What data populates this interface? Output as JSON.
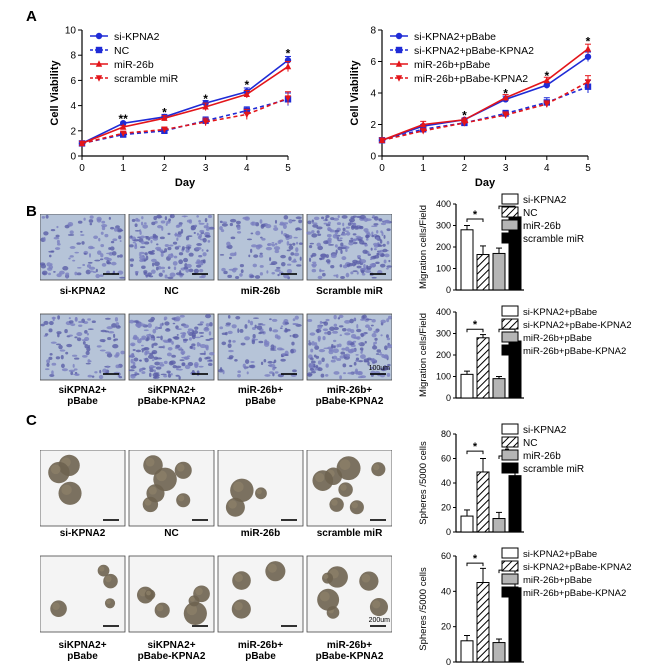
{
  "panels": {
    "a": "A",
    "b": "B",
    "c": "C"
  },
  "colors": {
    "blue": "#1f2bd6",
    "red": "#e3151a",
    "black": "#000000",
    "grey": "#b5b5b5"
  },
  "chart_data": [
    {
      "type": "line",
      "id": "A-left",
      "xlabel": "Day",
      "ylabel": "Cell Viability",
      "xlim": [
        0,
        5
      ],
      "ylim": [
        0,
        10
      ],
      "xticks": [
        "0",
        "1",
        "2",
        "3",
        "4",
        "5"
      ],
      "yticks": [
        "0",
        "2",
        "4",
        "6",
        "8",
        "10"
      ],
      "x": [
        0,
        1,
        2,
        3,
        4,
        5
      ],
      "series": [
        {
          "name": "si-KPNA2",
          "color": "#1f2bd6",
          "dash": false,
          "marker": "circle",
          "values": [
            1,
            2.6,
            3.1,
            4.2,
            5.1,
            7.6
          ],
          "err": [
            0,
            0.1,
            0.2,
            0.2,
            0.3,
            0.3
          ]
        },
        {
          "name": "NC",
          "color": "#1f2bd6",
          "dash": true,
          "marker": "square",
          "values": [
            1,
            1.7,
            2.0,
            2.8,
            3.6,
            4.5
          ],
          "err": [
            0,
            0.1,
            0.2,
            0.3,
            0.3,
            0.5
          ]
        },
        {
          "name": "miR-26b",
          "color": "#e3151a",
          "dash": false,
          "marker": "triangle-up",
          "values": [
            1,
            2.3,
            3.0,
            3.9,
            4.9,
            7.1
          ],
          "err": [
            0,
            0.1,
            0.2,
            0.3,
            0.3,
            0.4
          ]
        },
        {
          "name": "scramble miR",
          "color": "#e3151a",
          "dash": true,
          "marker": "triangle-down",
          "values": [
            1,
            1.8,
            2.1,
            2.7,
            3.3,
            4.6
          ],
          "err": [
            0,
            0.1,
            0.2,
            0.3,
            0.4,
            0.5
          ]
        }
      ],
      "annotations": [
        {
          "x": 1,
          "text": "**",
          "y": 3.1
        },
        {
          "x": 2,
          "text": "*",
          "y": 3.6
        },
        {
          "x": 3,
          "text": "*",
          "y": 4.7
        },
        {
          "x": 4,
          "text": "*",
          "y": 5.8
        },
        {
          "x": 5,
          "text": "*",
          "y": 8.3
        }
      ]
    },
    {
      "type": "line",
      "id": "A-right",
      "xlabel": "Day",
      "ylabel": "Cell Viability",
      "xlim": [
        0,
        5
      ],
      "ylim": [
        0,
        8
      ],
      "xticks": [
        "0",
        "1",
        "2",
        "3",
        "4",
        "5"
      ],
      "yticks": [
        "0",
        "2",
        "4",
        "6",
        "8"
      ],
      "x": [
        0,
        1,
        2,
        3,
        4,
        5
      ],
      "series": [
        {
          "name": "si-KPNA2+pBabe",
          "color": "#1f2bd6",
          "dash": false,
          "marker": "circle",
          "values": [
            1,
            1.9,
            2.3,
            3.6,
            4.5,
            6.3
          ],
          "err": [
            0,
            0.1,
            0.1,
            0.2,
            0.2,
            0.3
          ]
        },
        {
          "name": "si-KPNA2+pBabe-KPNA2",
          "color": "#1f2bd6",
          "dash": true,
          "marker": "square",
          "values": [
            1,
            1.7,
            2.1,
            2.7,
            3.4,
            4.4
          ],
          "err": [
            0,
            0.1,
            0.1,
            0.2,
            0.3,
            0.4
          ]
        },
        {
          "name": "miR-26b+pBabe",
          "color": "#e3151a",
          "dash": false,
          "marker": "triangle-up",
          "values": [
            1,
            2.0,
            2.3,
            3.7,
            4.8,
            6.8
          ],
          "err": [
            0,
            0.2,
            0.1,
            0.2,
            0.2,
            0.3
          ]
        },
        {
          "name": "miR-26b+pBabe-KPNA2",
          "color": "#e3151a",
          "dash": true,
          "marker": "triangle-down",
          "values": [
            1,
            1.6,
            2.1,
            2.6,
            3.3,
            4.7
          ],
          "err": [
            0,
            0.1,
            0.1,
            0.2,
            0.2,
            0.4
          ]
        }
      ],
      "annotations": [
        {
          "x": 2,
          "text": "*",
          "y": 2.7
        },
        {
          "x": 3,
          "text": "*",
          "y": 4.1
        },
        {
          "x": 4,
          "text": "*",
          "y": 5.2
        },
        {
          "x": 5,
          "text": "*",
          "y": 7.4
        }
      ]
    },
    {
      "type": "bar",
      "id": "B-top",
      "ylabel": "Migration cells/Field",
      "ylim": [
        0,
        400
      ],
      "yticks": [
        "0",
        "100",
        "200",
        "300",
        "400"
      ],
      "categories": [
        "si-KPNA2",
        "NC",
        "miR-26b",
        "scramble miR"
      ],
      "values": [
        280,
        165,
        170,
        340
      ],
      "err": [
        20,
        40,
        25,
        40
      ],
      "fills": [
        "white",
        "hatch",
        "grey",
        "black"
      ],
      "brackets": [
        [
          0,
          1,
          330
        ],
        [
          2,
          3,
          390
        ]
      ]
    },
    {
      "type": "bar",
      "id": "B-bottom",
      "ylabel": "Migration cells/Field",
      "ylim": [
        0,
        400
      ],
      "yticks": [
        "0",
        "100",
        "200",
        "300",
        "400"
      ],
      "categories": [
        "si-KPNA2+pBabe",
        "si-KPNA2+pBabe-KPNA2",
        "miR-26b+pBabe",
        "miR-26b+pBabe-KPNA2"
      ],
      "values": [
        110,
        280,
        90,
        265
      ],
      "err": [
        15,
        15,
        10,
        30
      ],
      "fills": [
        "white",
        "hatch",
        "grey",
        "black"
      ],
      "brackets": [
        [
          0,
          1,
          320
        ],
        [
          2,
          3,
          320
        ]
      ]
    },
    {
      "type": "bar",
      "id": "C-top",
      "ylabel": "Spheres /5000 cells",
      "ylim": [
        0,
        80
      ],
      "yticks": [
        "0",
        "20",
        "40",
        "60",
        "80"
      ],
      "categories": [
        "si-KPNA2",
        "NC",
        "miR-26b",
        "scramble miR"
      ],
      "values": [
        13,
        49,
        11,
        46
      ],
      "err": [
        5,
        11,
        5,
        9
      ],
      "fills": [
        "white",
        "hatch",
        "grey",
        "black"
      ],
      "brackets": [
        [
          0,
          1,
          66
        ],
        [
          2,
          3,
          62
        ]
      ]
    },
    {
      "type": "bar",
      "id": "C-bottom",
      "ylabel": "Spheres /5000 cells",
      "ylim": [
        0,
        60
      ],
      "yticks": [
        "0",
        "20",
        "40",
        "60"
      ],
      "categories": [
        "si-KPNA2+pBabe",
        "si-KPNA2+pBabe-KPNA2",
        "miR-26b+pBabe",
        "miR-26b+pBabe-KPNA2"
      ],
      "values": [
        12,
        45,
        11,
        42
      ],
      "err": [
        3,
        8,
        2,
        6
      ],
      "fills": [
        "white",
        "hatch",
        "grey",
        "black"
      ],
      "brackets": [
        [
          0,
          1,
          56
        ],
        [
          2,
          3,
          52
        ]
      ]
    }
  ],
  "images": {
    "b_top": [
      "si-KPNA2",
      "NC",
      "miR-26b",
      "Scramble miR"
    ],
    "b_bottom": [
      "siKPNA2+\npBabe",
      "siKPNA2+\npBabe-KPNA2",
      "miR-26b+\npBabe",
      "miR-26b+\npBabe-KPNA2"
    ],
    "b_scale": "100um",
    "c_top": [
      "si-KPNA2",
      "NC",
      "miR-26b",
      "scramble miR"
    ],
    "c_bottom": [
      "siKPNA2+\npBabe",
      "siKPNA2+\npBabe-KPNA2",
      "miR-26b+\npBabe",
      "miR-26b+\npBabe-KPNA2"
    ],
    "c_scale": "200um"
  },
  "asterisk": "*"
}
